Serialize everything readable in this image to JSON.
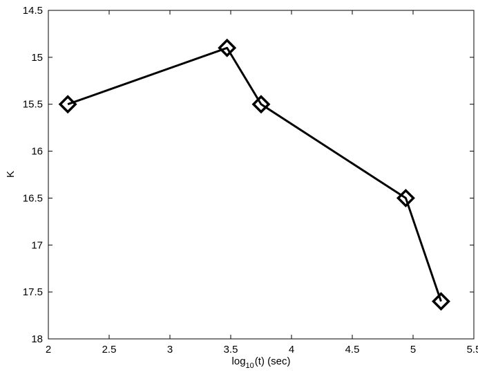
{
  "chart_data": {
    "type": "line",
    "xlabel": {
      "prefix": "log",
      "subscript": "10",
      "suffix": "(t) (sec)"
    },
    "ylabel": "K",
    "xlim": [
      2,
      5.5
    ],
    "ylim": [
      14.5,
      18
    ],
    "y_reversed": true,
    "grid": false,
    "x_ticks": [
      2,
      2.5,
      3,
      3.5,
      4,
      4.5,
      5,
      5.5
    ],
    "x_tick_labels": [
      "2",
      "2.5",
      "3",
      "3.5",
      "4",
      "4.5",
      "5",
      "5.5"
    ],
    "y_ticks": [
      14.5,
      15,
      15.5,
      16,
      16.5,
      17,
      17.5,
      18
    ],
    "y_tick_labels": [
      "14.5",
      "15",
      "15.5",
      "16",
      "16.5",
      "17",
      "17.5",
      "18"
    ],
    "series": [
      {
        "marker": "diamond",
        "color": "#000000",
        "x": [
          2.16,
          3.47,
          3.75,
          4.94,
          5.23
        ],
        "y": [
          15.5,
          14.9,
          15.5,
          16.5,
          17.6
        ]
      }
    ]
  }
}
